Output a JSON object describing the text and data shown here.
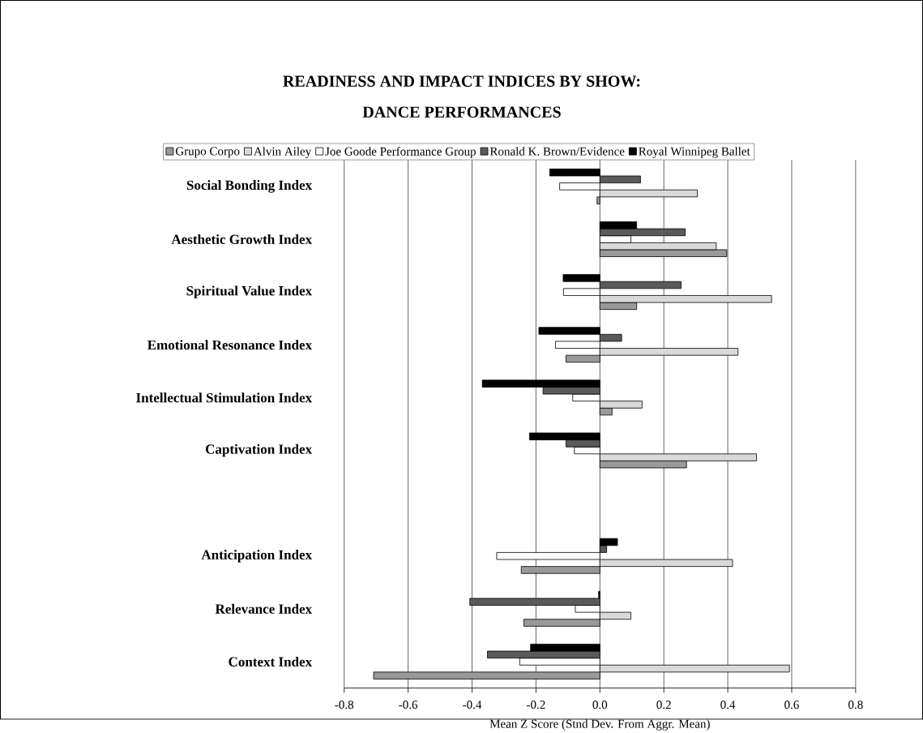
{
  "chart_data": {
    "type": "bar",
    "orientation": "horizontal",
    "title": "READINESS AND IMPACT INDICES BY SHOW:\nDANCE PERFORMANCES",
    "xlabel": "Mean Z Score (Stnd Dev. From Aggr. Mean)",
    "categories": [
      "Social Bonding Index",
      "Aesthetic Growth Index",
      "Spiritual Value Index",
      "Emotional Resonance Index",
      "Intellectual Stimulation Index",
      "Captivation Index",
      null,
      "Anticipation Index",
      "Relevance Index",
      "Context Index"
    ],
    "series": [
      {
        "name": "Grupo Corpo",
        "color": "#999999",
        "values": [
          -0.009,
          0.397,
          0.115,
          -0.106,
          0.038,
          0.271,
          null,
          -0.246,
          -0.238,
          -0.708
        ]
      },
      {
        "name": "Alvin Ailey",
        "color": "#d9d9d9",
        "values": [
          0.305,
          0.364,
          0.537,
          0.432,
          0.132,
          0.49,
          null,
          0.415,
          0.097,
          0.593
        ]
      },
      {
        "name": "Joe Goode Performance Group",
        "color": "#ffffff",
        "values": [
          -0.126,
          0.097,
          -0.114,
          -0.139,
          -0.085,
          -0.08,
          null,
          -0.323,
          -0.077,
          -0.251
        ]
      },
      {
        "name": "Ronald K. Brown/Evidence",
        "color": "#5a5a5a",
        "values": [
          0.127,
          0.267,
          0.254,
          0.068,
          -0.178,
          -0.106,
          null,
          0.021,
          -0.407,
          -0.352
        ]
      },
      {
        "name": "Royal Winnipeg Ballet",
        "color": "#000000",
        "values": [
          -0.157,
          0.115,
          -0.115,
          -0.191,
          -0.368,
          -0.22,
          null,
          0.055,
          -0.004,
          -0.217
        ]
      }
    ],
    "xlim": [
      -0.8,
      0.8
    ],
    "xticks": [
      -0.8,
      -0.6,
      -0.4,
      -0.2,
      {
        "value": 0,
        "label": "0.0"
      },
      0.2,
      0.4,
      0.6,
      0.8
    ],
    "grid": "x",
    "legend": "top"
  }
}
